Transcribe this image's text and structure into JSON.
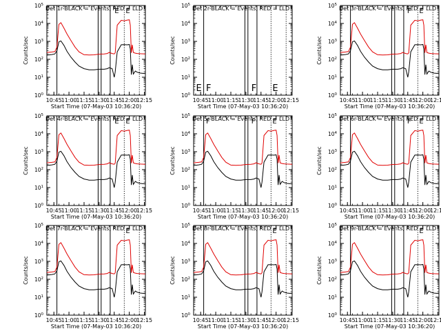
{
  "colors": {
    "events": "#000000",
    "lld": "#e00000",
    "axis": "#000000",
    "background": "#ffffff"
  },
  "shared": {
    "xlabel": "Start Time (07-May-03 10:36:20)",
    "ylabel": "Counts/sec",
    "x_ticks": [
      "10:45",
      "11:00",
      "11:15",
      "11:30",
      "11:45",
      "12:00",
      "12:15"
    ],
    "x_tick_minutes": [
      45,
      60,
      75,
      90,
      105,
      120,
      135
    ],
    "xlim_minutes": [
      38,
      136
    ],
    "y_scale": "log",
    "ylim_exp": [
      0,
      5
    ],
    "y_tick_labels": [
      "10",
      "10",
      "10",
      "10",
      "10",
      "10"
    ],
    "y_tick_exps": [
      "0",
      "1",
      "2",
      "3",
      "4",
      "5"
    ],
    "events_curve": {
      "x": [
        38,
        43,
        46,
        48,
        50,
        52,
        55,
        58,
        62,
        66,
        70,
        75,
        80,
        85,
        90,
        95,
        98,
        100,
        103,
        105,
        106,
        108,
        112,
        115,
        118,
        120,
        121,
        122,
        123,
        124,
        126,
        128,
        131,
        136
      ],
      "y": [
        170,
        185,
        200,
        300,
        950,
        1050,
        600,
        280,
        130,
        70,
        42,
        30,
        26,
        26,
        28,
        28,
        30,
        34,
        30,
        10,
        20,
        260,
        650,
        660,
        640,
        670,
        380,
        14,
        50,
        15,
        22,
        19,
        17,
        16
      ]
    },
    "lld_curve": {
      "x": [
        38,
        43,
        46,
        48,
        50,
        52,
        55,
        58,
        62,
        66,
        70,
        75,
        80,
        85,
        90,
        95,
        98,
        100,
        103,
        105,
        106,
        108,
        112,
        115,
        118,
        120,
        121,
        122,
        123,
        124,
        126,
        128,
        131,
        136
      ],
      "y": [
        240,
        255,
        270,
        480,
        9000,
        11000,
        5500,
        2600,
        1100,
        480,
        260,
        180,
        175,
        178,
        195,
        200,
        210,
        240,
        210,
        200,
        230,
        8000,
        15000,
        14000,
        15500,
        16000,
        8000,
        230,
        650,
        240,
        220,
        210,
        205,
        200
      ]
    }
  },
  "chart_data": [
    {
      "type": "line",
      "title": "Det 1r-BLACK = Events, RED = LLD",
      "has_curves": true,
      "solid_lines": [
        48,
        89,
        92,
        101
      ],
      "dotted_lines": [
        115,
        130
      ],
      "letters": [
        {
          "t": "E",
          "x": 104
        },
        {
          "t": "E",
          "x": 115
        }
      ],
      "series": [
        {
          "name": "Events"
        },
        {
          "name": "LLD"
        }
      ]
    },
    {
      "type": "line",
      "title": "Det 2r-BLACK = Events, RED = LLD",
      "has_curves": false,
      "solid_lines": [
        48,
        89,
        92,
        101
      ],
      "dotted_lines": [
        115,
        130
      ],
      "letters": [
        {
          "t": "E",
          "x": 39
        },
        {
          "t": "F",
          "x": 49
        },
        {
          "t": "F",
          "x": 94
        },
        {
          "t": "E",
          "x": 115
        }
      ],
      "series": [
        {
          "name": "Events"
        },
        {
          "name": "LLD"
        }
      ]
    },
    {
      "type": "line",
      "title": "Det 3r-BLACK = Events, RED = LLD",
      "has_curves": true,
      "solid_lines": [
        48,
        89,
        92,
        101
      ],
      "dotted_lines": [
        115,
        130
      ],
      "letters": [
        {
          "t": "F",
          "x": 103
        },
        {
          "t": "E",
          "x": 115
        }
      ],
      "series": [
        {
          "name": "Events"
        },
        {
          "name": "LLD"
        }
      ]
    },
    {
      "type": "line",
      "title": "Det 4r-BLACK = Events, RED = LLD",
      "has_curves": true,
      "solid_lines": [
        48,
        89,
        92,
        101
      ],
      "dotted_lines": [
        115,
        130
      ],
      "letters": [
        {
          "t": "E",
          "x": 104
        },
        {
          "t": "E",
          "x": 115
        }
      ],
      "series": [
        {
          "name": "Events"
        },
        {
          "name": "LLD"
        }
      ]
    },
    {
      "type": "line",
      "title": "Det 5r-BLACK = Events, RED = LLD",
      "has_curves": true,
      "solid_lines": [
        48,
        89,
        92,
        101
      ],
      "dotted_lines": [
        115,
        130
      ],
      "letters": [
        {
          "t": "F",
          "x": 49
        },
        {
          "t": "F",
          "x": 94
        },
        {
          "t": "E",
          "x": 115
        }
      ],
      "series": [
        {
          "name": "Events"
        },
        {
          "name": "LLD"
        }
      ]
    },
    {
      "type": "line",
      "title": "Det 6r-BLACK = Events, RED = LLD",
      "has_curves": true,
      "solid_lines": [
        48,
        89,
        92,
        101
      ],
      "dotted_lines": [
        115,
        130
      ],
      "letters": [
        {
          "t": "F",
          "x": 103
        },
        {
          "t": "E",
          "x": 115
        }
      ],
      "series": [
        {
          "name": "Events"
        },
        {
          "name": "LLD"
        }
      ]
    },
    {
      "type": "line",
      "title": "Det 7r-BLACK = Events, RED = LLD",
      "has_curves": true,
      "solid_lines": [
        48,
        89,
        92,
        101
      ],
      "dotted_lines": [
        115,
        130
      ],
      "letters": [
        {
          "t": "E",
          "x": 115
        }
      ],
      "series": [
        {
          "name": "Events"
        },
        {
          "name": "LLD"
        }
      ]
    },
    {
      "type": "line",
      "title": "Det 8r-BLACK = Events, RED = LLD",
      "has_curves": true,
      "solid_lines": [
        48,
        89,
        92,
        101
      ],
      "dotted_lines": [
        115,
        130
      ],
      "letters": [
        {
          "t": "E",
          "x": 115
        }
      ],
      "series": [
        {
          "name": "Events"
        },
        {
          "name": "LLD"
        }
      ]
    },
    {
      "type": "line",
      "title": "Det 9r-BLACK = Events, RED = LLD",
      "has_curves": true,
      "solid_lines": [
        48,
        89,
        92,
        101
      ],
      "dotted_lines": [
        115,
        130
      ],
      "letters": [
        {
          "t": "E",
          "x": 115
        }
      ],
      "series": [
        {
          "name": "Events"
        },
        {
          "name": "LLD"
        }
      ]
    }
  ]
}
